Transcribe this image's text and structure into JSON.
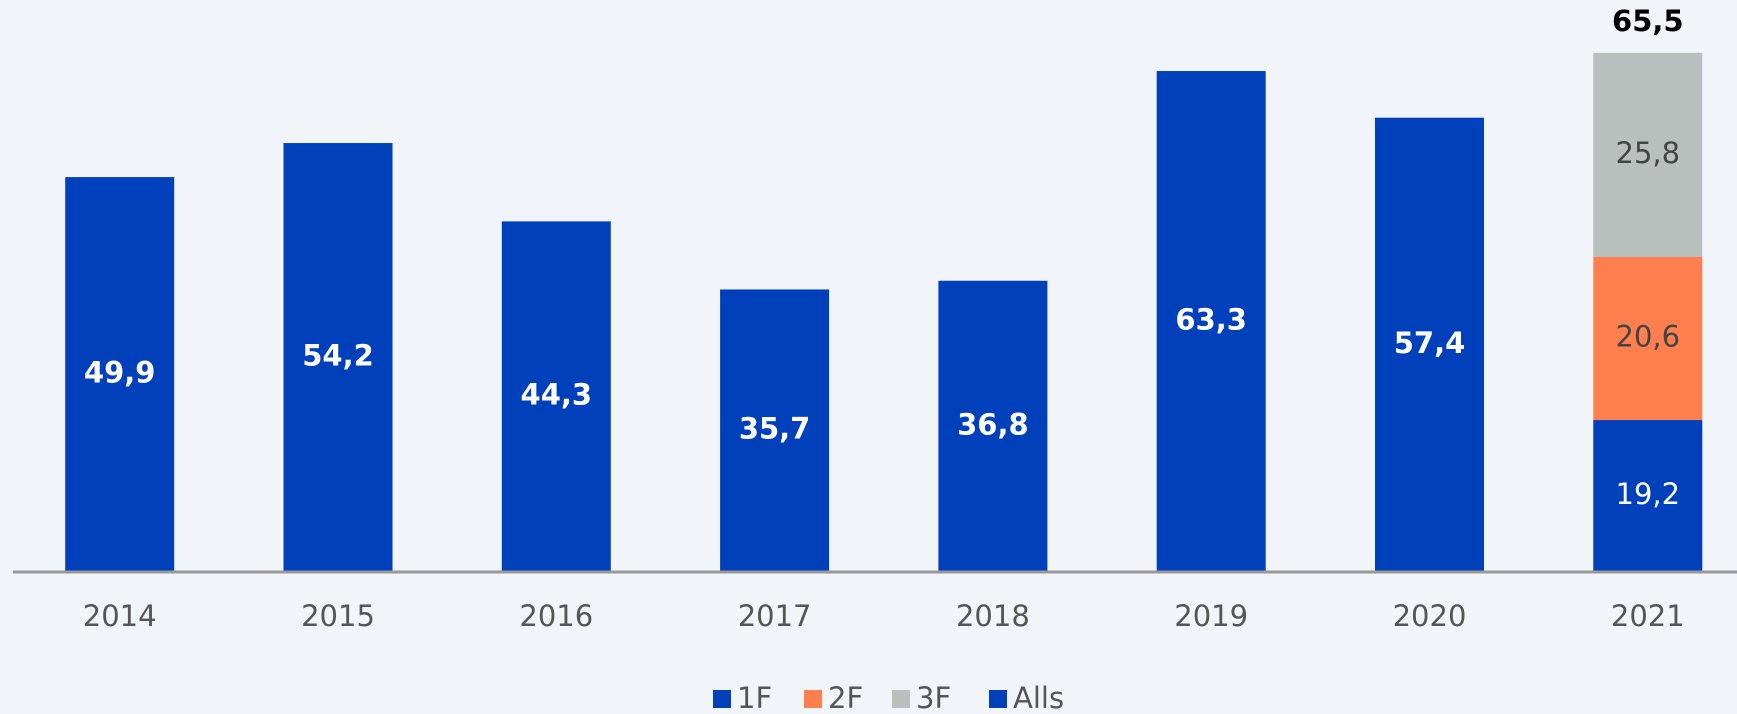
{
  "chart_data": {
    "type": "stacked_bar",
    "categories": [
      "2014",
      "2015",
      "2016",
      "2017",
      "2018",
      "2019",
      "2020",
      "2021"
    ],
    "series": [
      {
        "name": "1F",
        "color": "#0040bb",
        "label_color": "#ffffff",
        "label_bold": false,
        "values": [
          null,
          null,
          null,
          null,
          null,
          null,
          null,
          19.2
        ],
        "value_labels": [
          null,
          null,
          null,
          null,
          null,
          null,
          null,
          "19,2"
        ]
      },
      {
        "name": "2F",
        "color": "#ff7f4f",
        "label_color": "#444444",
        "label_bold": false,
        "values": [
          null,
          null,
          null,
          null,
          null,
          null,
          null,
          20.6
        ],
        "value_labels": [
          null,
          null,
          null,
          null,
          null,
          null,
          null,
          "20,6"
        ]
      },
      {
        "name": "3F",
        "color": "#b9bfbd",
        "label_color": "#444444",
        "label_bold": false,
        "values": [
          null,
          null,
          null,
          null,
          null,
          null,
          null,
          25.8
        ],
        "value_labels": [
          null,
          null,
          null,
          null,
          null,
          null,
          null,
          "25,8"
        ]
      },
      {
        "name": "Alls",
        "color": "#0040bb",
        "label_color": "#ffffff",
        "label_bold": true,
        "values": [
          49.9,
          54.2,
          44.3,
          35.7,
          36.8,
          63.3,
          57.4,
          null
        ],
        "value_labels": [
          "49,9",
          "54,2",
          "44,3",
          "35,7",
          "36,8",
          "63,3",
          "57,4",
          null
        ]
      }
    ],
    "total_values": [
      null,
      null,
      null,
      null,
      null,
      null,
      null,
      65.5
    ],
    "total_labels": [
      null,
      null,
      null,
      null,
      null,
      null,
      null,
      "65,5"
    ],
    "ylim": [
      0,
      70
    ],
    "legend": "bottom"
  }
}
